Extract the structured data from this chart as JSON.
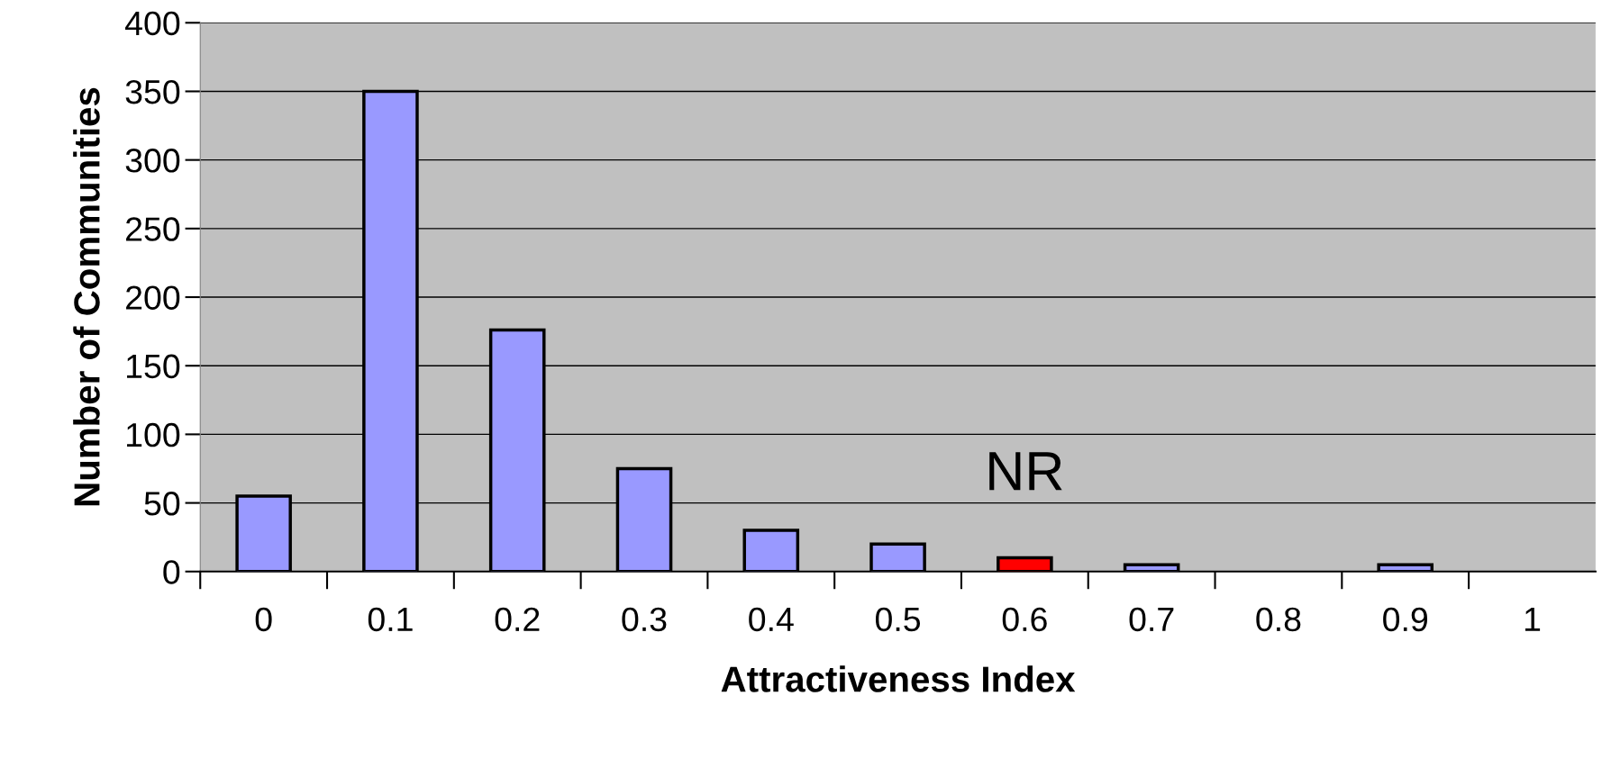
{
  "chart_data": {
    "type": "bar",
    "xlabel": "Attractiveness Index",
    "ylabel": "Number of Communities",
    "categories": [
      "0",
      "0.1",
      "0.2",
      "0.3",
      "0.4",
      "0.5",
      "0.6",
      "0.7",
      "0.8",
      "0.9",
      "1"
    ],
    "values": [
      55,
      350,
      176,
      75,
      30,
      20,
      10,
      5,
      0,
      5,
      0
    ],
    "colors": [
      "#9999ff",
      "#9999ff",
      "#9999ff",
      "#9999ff",
      "#9999ff",
      "#9999ff",
      "#ff0000",
      "#9999ff",
      "#9999ff",
      "#9999ff",
      "#9999ff"
    ],
    "ylim": [
      0,
      400
    ],
    "yticks": [
      0,
      50,
      100,
      150,
      200,
      250,
      300,
      350,
      400
    ],
    "grid": "y",
    "legend": false,
    "annotations": [
      {
        "text": "NR",
        "x": "0.6",
        "y": 10
      }
    ]
  }
}
